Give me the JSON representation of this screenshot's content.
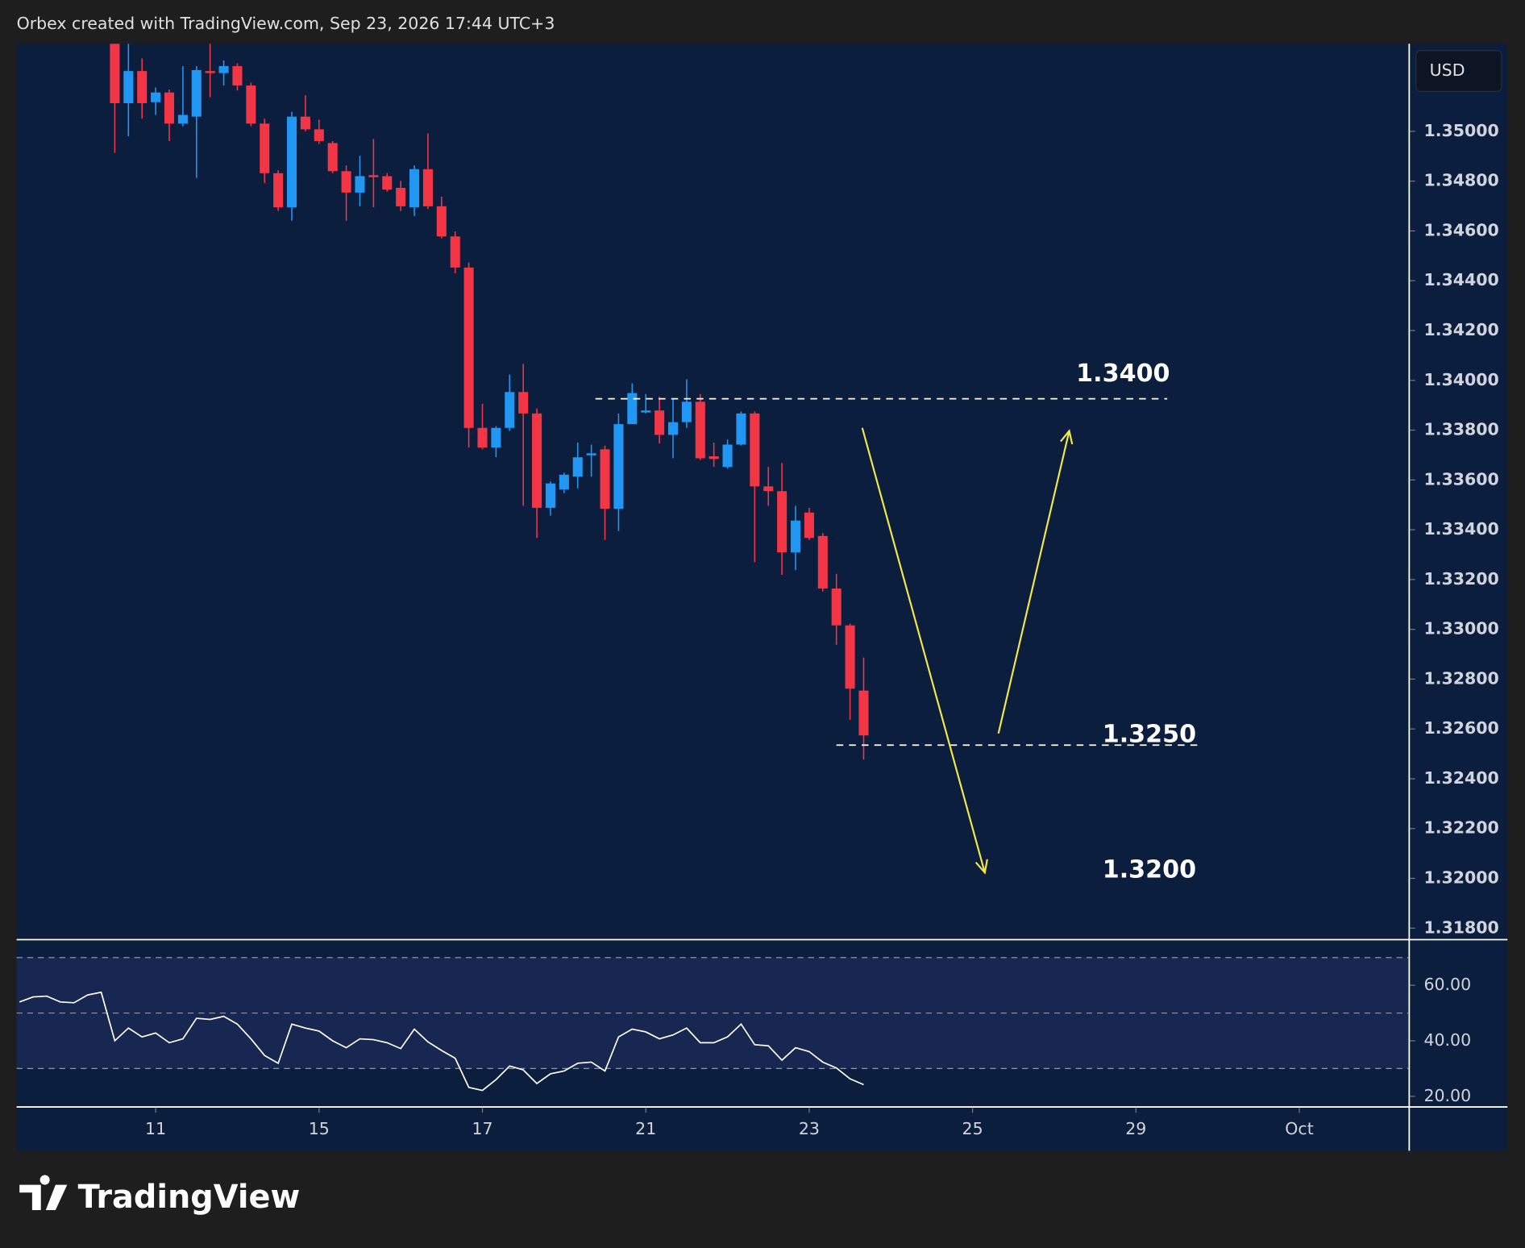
{
  "header": {
    "text": "Orbex created with TradingView.com, Sep 23, 2026 17:44 UTC+3"
  },
  "currency": "USD",
  "logo": "TradingView",
  "chart_data": [
    {
      "type": "candlestick",
      "up_color": "#2196f3",
      "down_color": "#f23645",
      "x": [
        -3,
        -2,
        -1,
        0,
        1,
        2,
        3,
        4,
        5,
        6,
        7,
        8,
        9,
        10,
        11,
        12,
        13,
        14,
        15,
        16,
        17,
        18,
        19,
        20,
        21,
        22,
        23,
        24,
        25,
        26,
        27,
        28,
        29,
        30,
        31,
        32,
        33,
        34,
        35,
        36,
        37,
        38,
        39,
        40,
        41,
        42,
        43,
        44,
        45,
        46,
        47,
        48,
        49,
        50,
        51,
        52
      ],
      "open": [
        1.35352,
        1.35113,
        1.35242,
        1.35117,
        1.35156,
        1.35031,
        1.35059,
        1.35242,
        1.35234,
        1.35262,
        1.35184,
        1.35031,
        1.34832,
        1.34695,
        1.35059,
        1.35008,
        1.34953,
        1.3484,
        1.34754,
        1.34824,
        1.3482,
        1.34773,
        1.34695,
        1.34848,
        1.34699,
        1.34578,
        1.34453,
        1.33809,
        1.3373,
        1.33809,
        1.33953,
        1.33867,
        1.33488,
        1.33562,
        1.33613,
        1.33699,
        1.33723,
        1.33484,
        1.33824,
        1.33871,
        1.33879,
        1.33781,
        1.33832,
        1.33914,
        1.33695,
        1.33652,
        1.33742,
        1.33867,
        1.33574,
        1.33555,
        1.33309,
        1.33469,
        1.33375,
        1.33164,
        1.33016,
        1.32754
      ],
      "high": [
        1.35371,
        1.35352,
        1.35293,
        1.35176,
        1.35168,
        1.35262,
        1.35262,
        1.35352,
        1.35285,
        1.35273,
        1.35195,
        1.35051,
        1.34844,
        1.35078,
        1.35145,
        1.35047,
        1.34961,
        1.34863,
        1.34902,
        1.34969,
        1.34832,
        1.34801,
        1.34863,
        1.34992,
        1.34738,
        1.34598,
        1.34473,
        1.33906,
        1.33816,
        1.34023,
        1.34066,
        1.33887,
        1.33594,
        1.33629,
        1.3375,
        1.33742,
        1.33738,
        1.33867,
        1.33988,
        1.33945,
        1.33934,
        1.33926,
        1.34004,
        1.33945,
        1.3375,
        1.33762,
        1.33875,
        1.33875,
        1.33652,
        1.33668,
        1.33496,
        1.33488,
        1.33387,
        1.33223,
        1.33023,
        1.32887
      ],
      "low": [
        1.34914,
        1.3498,
        1.35051,
        1.35066,
        1.34961,
        1.3502,
        1.34813,
        1.35137,
        1.35184,
        1.35164,
        1.3502,
        1.34793,
        1.3468,
        1.34641,
        1.35,
        1.34949,
        1.34832,
        1.34641,
        1.34699,
        1.34695,
        1.34758,
        1.3468,
        1.3466,
        1.34688,
        1.3457,
        1.3443,
        1.3373,
        1.33723,
        1.33691,
        1.33797,
        1.33496,
        1.33367,
        1.33457,
        1.33547,
        1.33566,
        1.33613,
        1.33359,
        1.33395,
        1.33824,
        1.33867,
        1.33746,
        1.33687,
        1.33809,
        1.3368,
        1.33652,
        1.33645,
        1.33738,
        1.3327,
        1.33496,
        1.33219,
        1.33238,
        1.33359,
        1.33152,
        1.32938,
        1.32637,
        1.32477
      ],
      "close": [
        1.35113,
        1.35242,
        1.35113,
        1.35156,
        1.35031,
        1.35066,
        1.35246,
        1.35234,
        1.35262,
        1.35184,
        1.35031,
        1.34832,
        1.34695,
        1.35059,
        1.35008,
        1.34961,
        1.3484,
        1.34754,
        1.3482,
        1.34816,
        1.34766,
        1.34699,
        1.34848,
        1.34699,
        1.34578,
        1.34453,
        1.33809,
        1.3373,
        1.33809,
        1.33953,
        1.33867,
        1.33488,
        1.33586,
        1.33621,
        1.33691,
        1.33707,
        1.33484,
        1.33824,
        1.33949,
        1.33879,
        1.33781,
        1.33832,
        1.33914,
        1.33687,
        1.33684,
        1.33742,
        1.33867,
        1.33574,
        1.33555,
        1.33309,
        1.33437,
        1.33367,
        1.33164,
        1.33016,
        1.32762,
        1.32574
      ],
      "xlim": [
        -10.214,
        92
      ],
      "ylim": [
        1.317578,
        1.353516
      ],
      "yticks": [
        {
          "value": 1.35,
          "label": "1.35000"
        },
        {
          "value": 1.348,
          "label": "1.34800"
        },
        {
          "value": 1.346,
          "label": "1.34600"
        },
        {
          "value": 1.344,
          "label": "1.34400"
        },
        {
          "value": 1.342,
          "label": "1.34200"
        },
        {
          "value": 1.34,
          "label": "1.34000"
        },
        {
          "value": 1.338,
          "label": "1.33800"
        },
        {
          "value": 1.336,
          "label": "1.33600"
        },
        {
          "value": 1.334,
          "label": "1.33400"
        },
        {
          "value": 1.332,
          "label": "1.33200"
        },
        {
          "value": 1.33,
          "label": "1.33000"
        },
        {
          "value": 1.328,
          "label": "1.32800"
        },
        {
          "value": 1.326,
          "label": "1.32600"
        },
        {
          "value": 1.324,
          "label": "1.32400"
        },
        {
          "value": 1.322,
          "label": "1.32200"
        },
        {
          "value": 1.32,
          "label": "1.32000"
        },
        {
          "value": 1.318,
          "label": "1.31800"
        }
      ],
      "hlines": [
        {
          "value": 1.33926,
          "x": [
            32.3,
            74.3
          ]
        },
        {
          "value": 1.32535,
          "x": [
            50.0,
            76.6
          ]
        }
      ],
      "arrows": [
        {
          "x": [
            51.9,
            60.9
          ],
          "y": [
            1.33809,
            1.32023
          ]
        },
        {
          "x": [
            61.9,
            67.1
          ],
          "y": [
            1.32582,
            1.33797
          ]
        }
      ],
      "arrow_color": "#f2e84a",
      "annotations": [
        "1.3400",
        "1.3250",
        "1.3200"
      ]
    },
    {
      "type": "line",
      "color": "#ffffff",
      "x": [
        -10,
        -9,
        -8,
        -7,
        -6,
        -5,
        -4,
        -3,
        -2,
        -1,
        0,
        1,
        2,
        3,
        4,
        5,
        6,
        7,
        8,
        9,
        10,
        11,
        12,
        13,
        14,
        15,
        16,
        17,
        18,
        19,
        20,
        21,
        22,
        23,
        24,
        25,
        26,
        27,
        28,
        29,
        30,
        31,
        32,
        33,
        34,
        35,
        36,
        37,
        38,
        39,
        40,
        41,
        42,
        43,
        44,
        45,
        46,
        47,
        48,
        49,
        50,
        51,
        52
      ],
      "values": [
        54.0,
        55.8,
        56.1,
        54.0,
        53.7,
        56.5,
        57.5,
        40.0,
        44.6,
        41.4,
        42.8,
        39.3,
        40.7,
        48.1,
        47.7,
        48.8,
        46.0,
        40.7,
        34.7,
        31.9,
        46.0,
        44.6,
        43.5,
        40.0,
        37.5,
        40.7,
        40.4,
        39.3,
        37.2,
        44.2,
        39.6,
        36.5,
        33.7,
        23.2,
        22.1,
        26.0,
        30.9,
        29.5,
        24.6,
        28.1,
        29.1,
        31.9,
        32.3,
        29.1,
        41.4,
        44.2,
        43.2,
        40.7,
        42.1,
        44.6,
        39.3,
        39.3,
        41.4,
        46.0,
        38.6,
        38.2,
        33.0,
        37.5,
        36.1,
        32.3,
        30.2,
        26.3,
        24.2
      ],
      "xlim": [
        -10.214,
        92
      ],
      "ylim": [
        16.5,
        76.1
      ],
      "yticks": [
        {
          "value": 60,
          "label": "60.00"
        },
        {
          "value": 40,
          "label": "40.00"
        },
        {
          "value": 20,
          "label": "20.00"
        }
      ],
      "levels": [
        70,
        50,
        30
      ],
      "xticks": [
        {
          "value": 0,
          "label": "11"
        },
        {
          "value": 12,
          "label": "15"
        },
        {
          "value": 24,
          "label": "17"
        },
        {
          "value": 36,
          "label": "21"
        },
        {
          "value": 48,
          "label": "23"
        },
        {
          "value": 60,
          "label": "25"
        },
        {
          "value": 72,
          "label": "29"
        },
        {
          "value": 84,
          "label": "Oct"
        }
      ]
    }
  ]
}
